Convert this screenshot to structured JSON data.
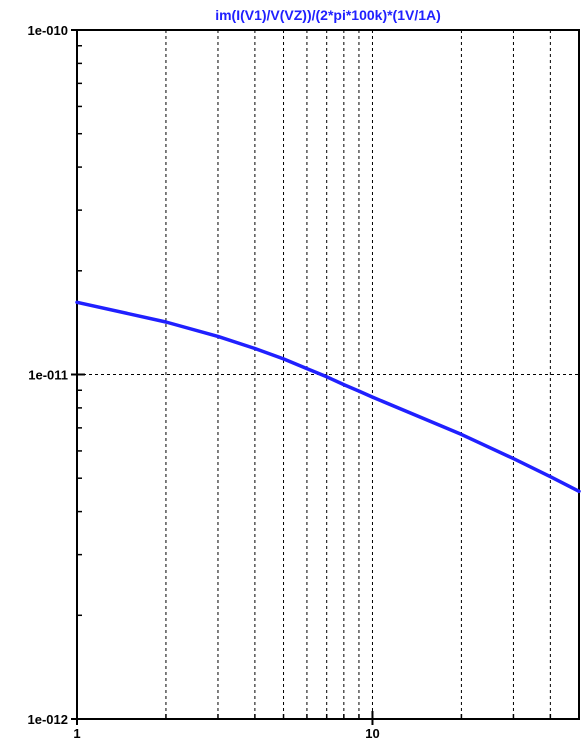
{
  "chart_data": {
    "type": "line",
    "title": "",
    "xlabel": "",
    "ylabel": "",
    "x_scale": "log",
    "y_scale": "log",
    "xlim": [
      1,
      50
    ],
    "ylim": [
      1e-12,
      1e-10
    ],
    "grid": true,
    "x_ticks": [
      {
        "value": 1,
        "label": "1"
      },
      {
        "value": 10,
        "label": "10"
      }
    ],
    "y_ticks": [
      {
        "value": 1e-10,
        "label": "1e-010"
      },
      {
        "value": 1e-11,
        "label": "1e-011"
      },
      {
        "value": 1e-12,
        "label": "1e-012"
      }
    ],
    "x_minor_grid": [
      2,
      3,
      4,
      5,
      6,
      7,
      8,
      9,
      20,
      30,
      40
    ],
    "y_major_grid": [
      1e-11
    ],
    "series": [
      {
        "name": "im(I(V1)/V(VZ))/(2*pi*100k)*(1V/1A)",
        "color": "#2020ff",
        "x": [
          1,
          2,
          3,
          4,
          5,
          6,
          7,
          8,
          9,
          10,
          20,
          30,
          40,
          50
        ],
        "y": [
          1.62e-11,
          1.42e-11,
          1.29e-11,
          1.19e-11,
          1.11e-11,
          1.04e-11,
          9.85e-12,
          9.35e-12,
          8.95e-12,
          8.6e-12,
          6.7e-12,
          5.7e-12,
          5.05e-12,
          4.58e-12
        ]
      }
    ]
  }
}
